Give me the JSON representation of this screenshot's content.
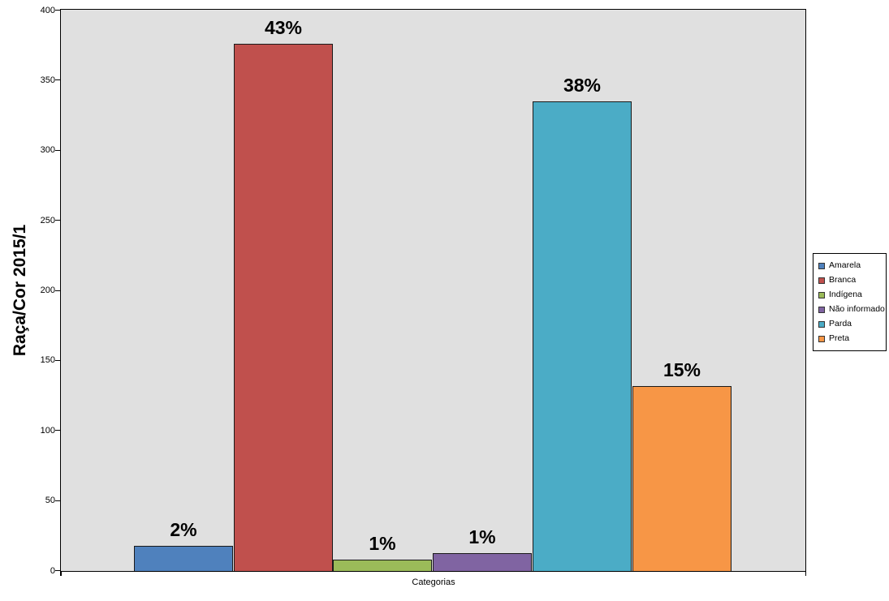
{
  "chart_data": {
    "type": "bar",
    "title": "",
    "ylabel": "Raça/Cor 2015/1",
    "xlabel": "Categorias",
    "ylim": [
      0,
      400
    ],
    "ytick_step": 50,
    "yticks": [
      0,
      50,
      100,
      150,
      200,
      250,
      300,
      350,
      400
    ],
    "grid": false,
    "legend_position": "right",
    "plot_background": "#E0E0E0",
    "page_background": "#FFFFFF",
    "categories": [
      "Amarela",
      "Branca",
      "Indígena",
      "Não informado",
      "Parda",
      "Preta"
    ],
    "series": [
      {
        "name": "Amarela",
        "value": 18,
        "label": "2%",
        "color": "#4F81BD"
      },
      {
        "name": "Branca",
        "value": 376,
        "label": "43%",
        "color": "#C0504D"
      },
      {
        "name": "Indígena",
        "value": 8,
        "label": "1%",
        "color": "#9BBB59"
      },
      {
        "name": "Não informado",
        "value": 13,
        "label": "1%",
        "color": "#8064A2"
      },
      {
        "name": "Parda",
        "value": 335,
        "label": "38%",
        "color": "#4BACC6"
      },
      {
        "name": "Preta",
        "value": 132,
        "label": "15%",
        "color": "#F79646"
      }
    ],
    "legend": [
      "Amarela",
      "Branca",
      "Indígena",
      "Não informado",
      "Parda",
      "Preta"
    ]
  }
}
